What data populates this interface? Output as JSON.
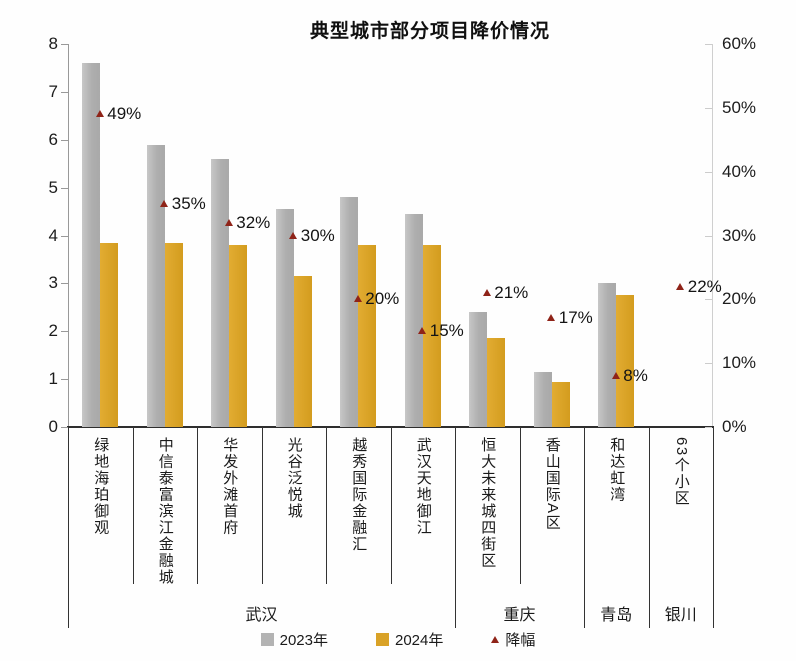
{
  "title": "典型城市部分项目降价情况",
  "legend": {
    "items": [
      {
        "label": "2023年",
        "color": "#b3b3b3",
        "marker": "square"
      },
      {
        "label": "2024年",
        "color": "#d9a227",
        "marker": "square"
      },
      {
        "label": "降幅",
        "color": "#8f2318",
        "marker": "triangle"
      }
    ]
  },
  "chart_data": {
    "type": "bar",
    "title": "典型城市部分项目降价情况",
    "categories": [
      "绿地海珀御观",
      "中信泰富滨江金融城",
      "华发外滩首府",
      "光谷泛悦城",
      "越秀国际金融汇",
      "武汉天地御江",
      "恒大未来城四街区",
      "香山国际A区",
      "和达虹湾",
      "63个小区"
    ],
    "city_groups": [
      {
        "label": "武汉",
        "span": 6
      },
      {
        "label": "重庆",
        "span": 2
      },
      {
        "label": "青岛",
        "span": 1
      },
      {
        "label": "银川",
        "span": 1
      }
    ],
    "series": [
      {
        "name": "2023年",
        "type": "bar",
        "axis": "left",
        "color": "#b3b3b3",
        "values": [
          7.6,
          5.9,
          5.6,
          4.55,
          4.8,
          4.45,
          2.4,
          1.15,
          3.0,
          null
        ]
      },
      {
        "name": "2024年",
        "type": "bar",
        "axis": "left",
        "color": "#d9a227",
        "values": [
          3.85,
          3.85,
          3.8,
          3.15,
          3.8,
          3.8,
          1.85,
          0.95,
          2.75,
          null
        ]
      },
      {
        "name": "降幅",
        "type": "scatter",
        "marker": "triangle",
        "axis": "right",
        "color": "#8f2318",
        "values": [
          49,
          35,
          32,
          30,
          20,
          15,
          21,
          17,
          8,
          22
        ],
        "labels": [
          "49%",
          "35%",
          "32%",
          "30%",
          "20%",
          "15%",
          "21%",
          "17%",
          "8%",
          "22%"
        ]
      }
    ],
    "left_axis": {
      "min": 0,
      "max": 8,
      "ticks": [
        0,
        1,
        2,
        3,
        4,
        5,
        6,
        7,
        8
      ]
    },
    "right_axis": {
      "min": 0,
      "max": 60,
      "tick_values": [
        0,
        10,
        20,
        30,
        40,
        50,
        60
      ],
      "tick_labels": [
        "0%",
        "10%",
        "20%",
        "30%",
        "40%",
        "50%",
        "60%"
      ]
    },
    "grid": false,
    "legend_position": "bottom"
  }
}
